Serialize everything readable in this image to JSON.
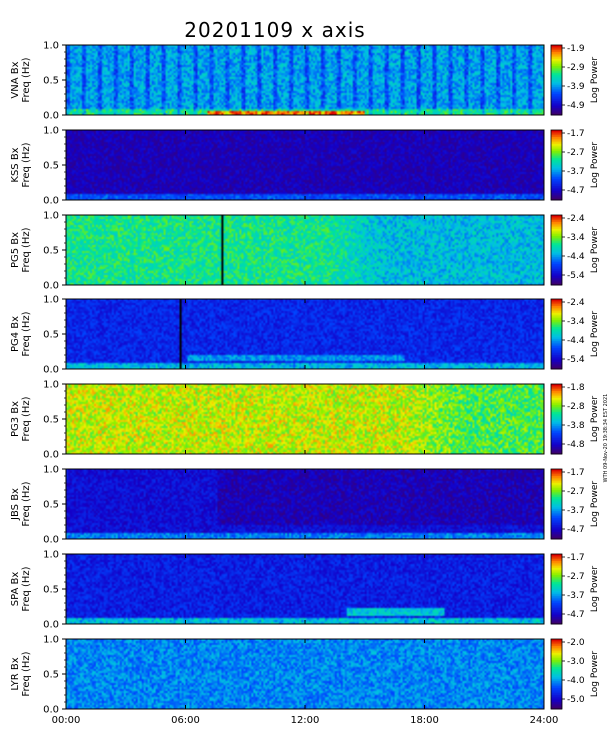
{
  "chart_data": {
    "type": "heatmap",
    "title": "20201109  x axis",
    "credit": "WTH 09-Nov-20 19:38:34 EST 2021",
    "x_range": [
      "00:00",
      "24:00"
    ],
    "x_ticks": [
      "00:00",
      "06:00",
      "12:00",
      "18:00",
      "24:00"
    ],
    "y_range": [
      0.0,
      1.0
    ],
    "y_ticks": [
      "0.0",
      "0.5",
      "1.0"
    ],
    "colorbar_label": "Log Power",
    "panels": [
      {
        "station": "VNA",
        "ylabel": "VNA Bx Freq (Hz)",
        "cbar_ticks": [
          "-1.9",
          "-2.9",
          "-3.9",
          "-4.9"
        ],
        "base_level": 0.42,
        "variability": 0.1,
        "low_freq_band": 0.62,
        "stripes": true
      },
      {
        "station": "KSS",
        "ylabel": "KSS Bx Freq (Hz)",
        "cbar_ticks": [
          "-1.7",
          "-2.7",
          "-3.7",
          "-4.7"
        ],
        "base_level": 0.1,
        "variability": 0.06,
        "low_freq_band": 0.35
      },
      {
        "station": "PG5",
        "ylabel": "PG5 Bx Freq (Hz)",
        "cbar_ticks": [
          "-2.4",
          "-3.4",
          "-4.4",
          "-5.4"
        ],
        "base_level": 0.58,
        "variability": 0.1,
        "gap_hour": 7.8
      },
      {
        "station": "PG4",
        "ylabel": "PG4 Bx Freq (Hz)",
        "cbar_ticks": [
          "-2.4",
          "-3.4",
          "-4.4",
          "-5.4"
        ],
        "base_level": 0.22,
        "variability": 0.08,
        "low_freq_band": 0.5,
        "gap_hour": 5.7
      },
      {
        "station": "PG3",
        "ylabel": "PG3 Bx Freq (Hz)",
        "cbar_ticks": [
          "-1.8",
          "-2.8",
          "-3.8",
          "-4.8"
        ],
        "base_level": 0.76,
        "variability": 0.12
      },
      {
        "station": "JBS",
        "ylabel": "JBS Bx Freq (Hz)",
        "cbar_ticks": [
          "-1.7",
          "-2.7",
          "-3.7",
          "-4.7"
        ],
        "base_level": 0.16,
        "variability": 0.07,
        "low_freq_band": 0.42
      },
      {
        "station": "SPA",
        "ylabel": "SPA Bx Freq (Hz)",
        "cbar_ticks": [
          "-1.7",
          "-2.7",
          "-3.7",
          "-4.7"
        ],
        "base_level": 0.2,
        "variability": 0.08,
        "low_freq_band": 0.52
      },
      {
        "station": "LYR",
        "ylabel": "LYR Bx Freq (Hz)",
        "cbar_ticks": [
          "-2.0",
          "-3.0",
          "-4.0",
          "-5.0"
        ],
        "base_level": 0.38,
        "variability": 0.09
      }
    ]
  }
}
